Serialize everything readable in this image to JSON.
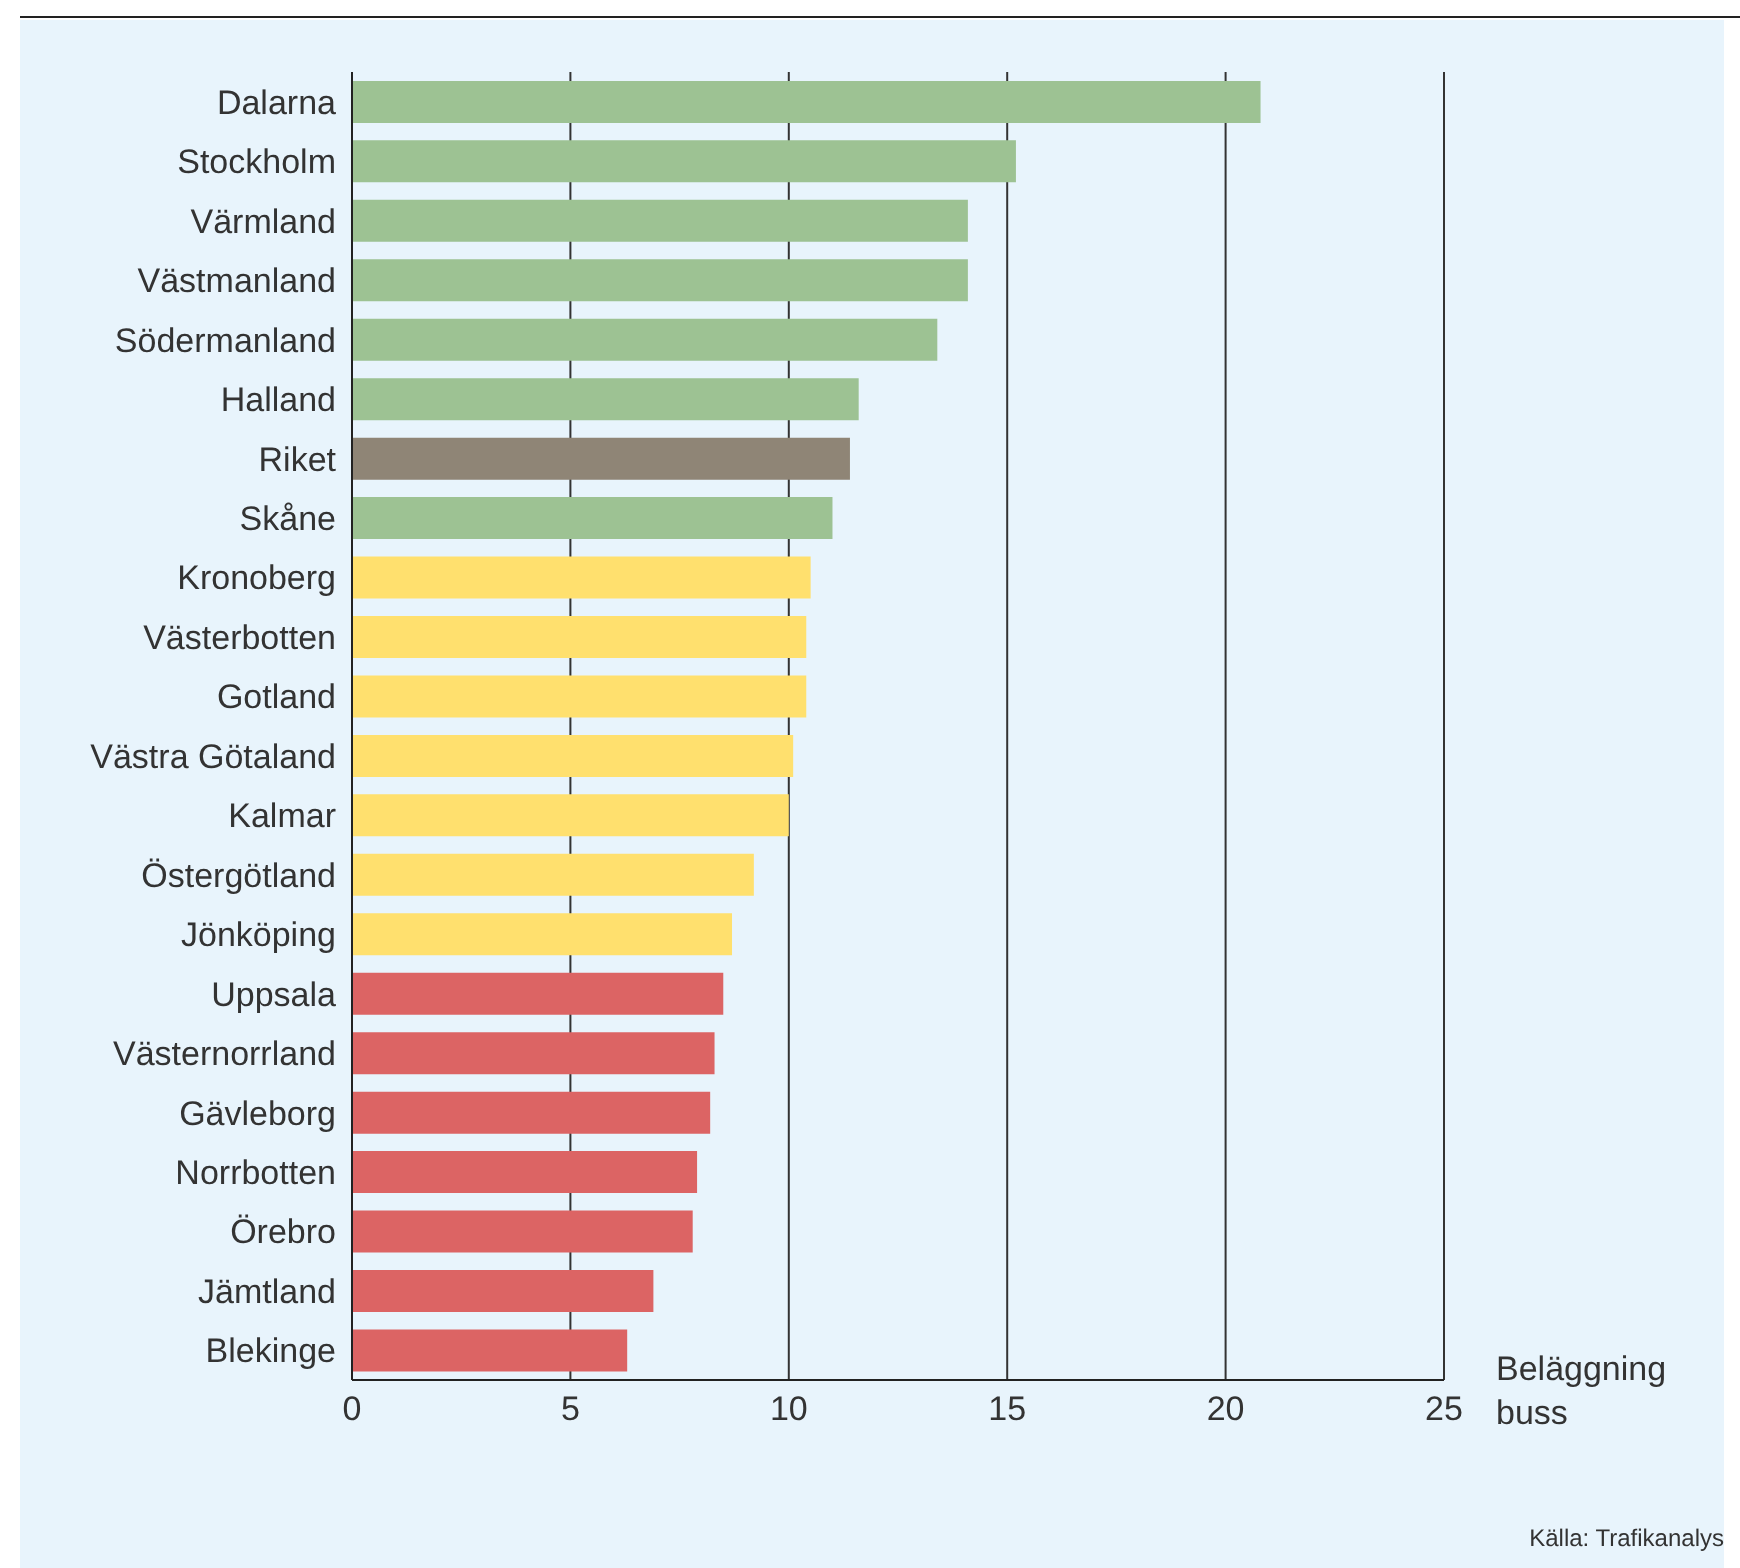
{
  "chart_data": {
    "type": "bar",
    "orientation": "horizontal",
    "categories": [
      "Dalarna",
      "Stockholm",
      "Värmland",
      "Västmanland",
      "Södermanland",
      "Halland",
      "Riket",
      "Skåne",
      "Kronoberg",
      "Västerbotten",
      "Gotland",
      "Västra Götaland",
      "Kalmar",
      "Östergötland",
      "Jönköping",
      "Uppsala",
      "Västernorrland",
      "Gävleborg",
      "Norrbotten",
      "Örebro",
      "Jämtland",
      "Blekinge"
    ],
    "values": [
      20.8,
      15.2,
      14.1,
      14.1,
      13.4,
      11.6,
      11.4,
      11.0,
      10.5,
      10.4,
      10.4,
      10.1,
      10.0,
      9.2,
      8.7,
      8.5,
      8.3,
      8.2,
      7.9,
      7.8,
      6.9,
      6.3
    ],
    "colors": [
      "#9dc293",
      "#9dc293",
      "#9dc293",
      "#9dc293",
      "#9dc293",
      "#9dc293",
      "#8f8576",
      "#9dc293",
      "#ffe06e",
      "#ffe06e",
      "#ffe06e",
      "#ffe06e",
      "#ffe06e",
      "#ffe06e",
      "#ffe06e",
      "#dc6464",
      "#dc6464",
      "#dc6464",
      "#dc6464",
      "#dc6464",
      "#dc6464",
      "#dc6464"
    ],
    "xlim": [
      0,
      25
    ],
    "xticks": [
      0,
      5,
      10,
      15,
      20,
      25
    ],
    "grid": "x",
    "xlabel": "Beläggning buss",
    "annotations": [
      "Källa: Trafikanalys"
    ]
  }
}
